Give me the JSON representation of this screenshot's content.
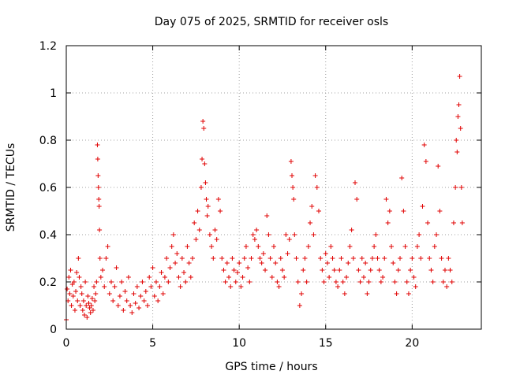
{
  "chart_data": {
    "type": "scatter",
    "title": "Day 075 of 2025, SRMTID for receiver osls",
    "xlabel": "GPS time / hours",
    "ylabel": "SRMTID / TECUs",
    "xlim": [
      0,
      24
    ],
    "ylim": [
      0,
      1.2
    ],
    "xticks": [
      0,
      5,
      10,
      15,
      20
    ],
    "xtick_labels": [
      "0",
      "5",
      "10",
      "15",
      "20"
    ],
    "yticks": [
      0,
      0.2,
      0.4,
      0.6,
      0.8,
      1.0,
      1.2
    ],
    "ytick_labels": [
      "0",
      "0.2",
      "0.4",
      "0.6",
      "0.8",
      "1",
      "1.2"
    ],
    "grid": true,
    "marker": "+",
    "series": [
      {
        "name": "SRMTID",
        "color": "#e00000",
        "x": [
          0.0,
          0.05,
          0.1,
          0.15,
          0.2,
          0.25,
          0.3,
          0.35,
          0.4,
          0.45,
          0.5,
          0.55,
          0.6,
          0.65,
          0.7,
          0.75,
          0.8,
          0.85,
          0.9,
          0.95,
          1.0,
          1.05,
          1.1,
          1.15,
          1.2,
          1.25,
          1.3,
          1.35,
          1.4,
          1.45,
          1.5,
          1.55,
          1.6,
          1.65,
          1.7,
          1.75,
          1.8,
          1.82,
          1.84,
          1.86,
          1.88,
          1.9,
          1.92,
          1.95,
          2.0,
          2.1,
          2.2,
          2.3,
          2.4,
          2.5,
          2.6,
          2.7,
          2.8,
          2.9,
          3.0,
          3.1,
          3.2,
          3.3,
          3.4,
          3.5,
          3.6,
          3.7,
          3.8,
          3.9,
          4.0,
          4.1,
          4.2,
          4.3,
          4.4,
          4.5,
          4.6,
          4.7,
          4.8,
          4.9,
          5.0,
          5.1,
          5.2,
          5.3,
          5.4,
          5.5,
          5.6,
          5.7,
          5.8,
          5.9,
          6.0,
          6.1,
          6.2,
          6.3,
          6.4,
          6.5,
          6.6,
          6.7,
          6.8,
          6.9,
          7.0,
          7.1,
          7.2,
          7.3,
          7.4,
          7.5,
          7.6,
          7.7,
          7.8,
          7.85,
          7.9,
          7.95,
          8.0,
          8.05,
          8.1,
          8.15,
          8.2,
          8.3,
          8.4,
          8.5,
          8.6,
          8.7,
          8.8,
          8.9,
          9.0,
          9.1,
          9.2,
          9.3,
          9.4,
          9.5,
          9.6,
          9.7,
          9.8,
          9.9,
          10.0,
          10.1,
          10.2,
          10.3,
          10.4,
          10.5,
          10.6,
          10.7,
          10.8,
          10.9,
          11.0,
          11.1,
          11.2,
          11.3,
          11.4,
          11.5,
          11.6,
          11.7,
          11.8,
          11.9,
          12.0,
          12.1,
          12.2,
          12.3,
          12.4,
          12.5,
          12.6,
          12.7,
          12.8,
          12.9,
          13.0,
          13.05,
          13.1,
          13.15,
          13.2,
          13.3,
          13.4,
          13.5,
          13.6,
          13.7,
          13.8,
          13.9,
          14.0,
          14.1,
          14.2,
          14.3,
          14.4,
          14.5,
          14.6,
          14.7,
          14.8,
          14.9,
          15.0,
          15.1,
          15.2,
          15.3,
          15.4,
          15.5,
          15.6,
          15.7,
          15.8,
          15.9,
          16.0,
          16.1,
          16.2,
          16.3,
          16.4,
          16.5,
          16.6,
          16.7,
          16.8,
          16.9,
          17.0,
          17.1,
          17.2,
          17.3,
          17.4,
          17.5,
          17.6,
          17.7,
          17.8,
          17.9,
          18.0,
          18.1,
          18.2,
          18.3,
          18.4,
          18.5,
          18.6,
          18.7,
          18.8,
          18.9,
          19.0,
          19.1,
          19.2,
          19.3,
          19.4,
          19.5,
          19.6,
          19.7,
          19.8,
          19.9,
          20.0,
          20.1,
          20.2,
          20.3,
          20.4,
          20.5,
          20.6,
          20.7,
          20.8,
          20.9,
          21.0,
          21.1,
          21.2,
          21.3,
          21.4,
          21.5,
          21.6,
          21.7,
          21.8,
          21.9,
          22.0,
          22.1,
          22.2,
          22.3,
          22.4,
          22.5,
          22.55,
          22.6,
          22.65,
          22.7,
          22.75,
          22.8,
          22.85,
          22.9
        ],
        "y": [
          0.04,
          0.17,
          0.12,
          0.22,
          0.15,
          0.25,
          0.1,
          0.19,
          0.14,
          0.2,
          0.08,
          0.16,
          0.24,
          0.12,
          0.3,
          0.22,
          0.1,
          0.18,
          0.15,
          0.08,
          0.12,
          0.06,
          0.2,
          0.1,
          0.05,
          0.14,
          0.11,
          0.09,
          0.07,
          0.1,
          0.13,
          0.08,
          0.18,
          0.12,
          0.15,
          0.2,
          0.78,
          0.72,
          0.65,
          0.6,
          0.55,
          0.52,
          0.42,
          0.3,
          0.22,
          0.25,
          0.18,
          0.3,
          0.35,
          0.15,
          0.2,
          0.12,
          0.18,
          0.26,
          0.1,
          0.14,
          0.2,
          0.08,
          0.16,
          0.12,
          0.22,
          0.1,
          0.07,
          0.15,
          0.11,
          0.18,
          0.09,
          0.14,
          0.2,
          0.12,
          0.16,
          0.1,
          0.22,
          0.18,
          0.26,
          0.14,
          0.2,
          0.12,
          0.18,
          0.24,
          0.15,
          0.22,
          0.3,
          0.2,
          0.26,
          0.35,
          0.4,
          0.28,
          0.32,
          0.22,
          0.18,
          0.3,
          0.24,
          0.2,
          0.35,
          0.28,
          0.22,
          0.3,
          0.45,
          0.38,
          0.5,
          0.42,
          0.6,
          0.72,
          0.88,
          0.85,
          0.7,
          0.62,
          0.55,
          0.48,
          0.52,
          0.4,
          0.35,
          0.3,
          0.42,
          0.38,
          0.55,
          0.5,
          0.3,
          0.25,
          0.2,
          0.28,
          0.22,
          0.18,
          0.3,
          0.25,
          0.2,
          0.24,
          0.28,
          0.18,
          0.22,
          0.3,
          0.35,
          0.26,
          0.2,
          0.3,
          0.4,
          0.38,
          0.42,
          0.35,
          0.3,
          0.28,
          0.32,
          0.25,
          0.48,
          0.4,
          0.3,
          0.22,
          0.35,
          0.28,
          0.2,
          0.18,
          0.3,
          0.25,
          0.22,
          0.4,
          0.32,
          0.38,
          0.71,
          0.65,
          0.6,
          0.55,
          0.4,
          0.3,
          0.2,
          0.1,
          0.15,
          0.25,
          0.3,
          0.2,
          0.35,
          0.45,
          0.52,
          0.4,
          0.65,
          0.6,
          0.5,
          0.3,
          0.25,
          0.2,
          0.32,
          0.28,
          0.22,
          0.35,
          0.3,
          0.25,
          0.2,
          0.18,
          0.25,
          0.3,
          0.2,
          0.15,
          0.22,
          0.28,
          0.35,
          0.42,
          0.3,
          0.62,
          0.55,
          0.25,
          0.2,
          0.3,
          0.22,
          0.28,
          0.15,
          0.2,
          0.25,
          0.3,
          0.35,
          0.4,
          0.3,
          0.25,
          0.2,
          0.22,
          0.3,
          0.55,
          0.45,
          0.5,
          0.35,
          0.28,
          0.2,
          0.15,
          0.25,
          0.3,
          0.64,
          0.5,
          0.35,
          0.2,
          0.15,
          0.25,
          0.3,
          0.22,
          0.18,
          0.35,
          0.4,
          0.3,
          0.52,
          0.78,
          0.71,
          0.45,
          0.3,
          0.25,
          0.2,
          0.35,
          0.4,
          0.69,
          0.5,
          0.3,
          0.2,
          0.25,
          0.18,
          0.3,
          0.25,
          0.2,
          0.45,
          0.6,
          0.8,
          0.75,
          0.9,
          0.95,
          1.07,
          0.85,
          0.6,
          0.45
        ]
      }
    ]
  }
}
